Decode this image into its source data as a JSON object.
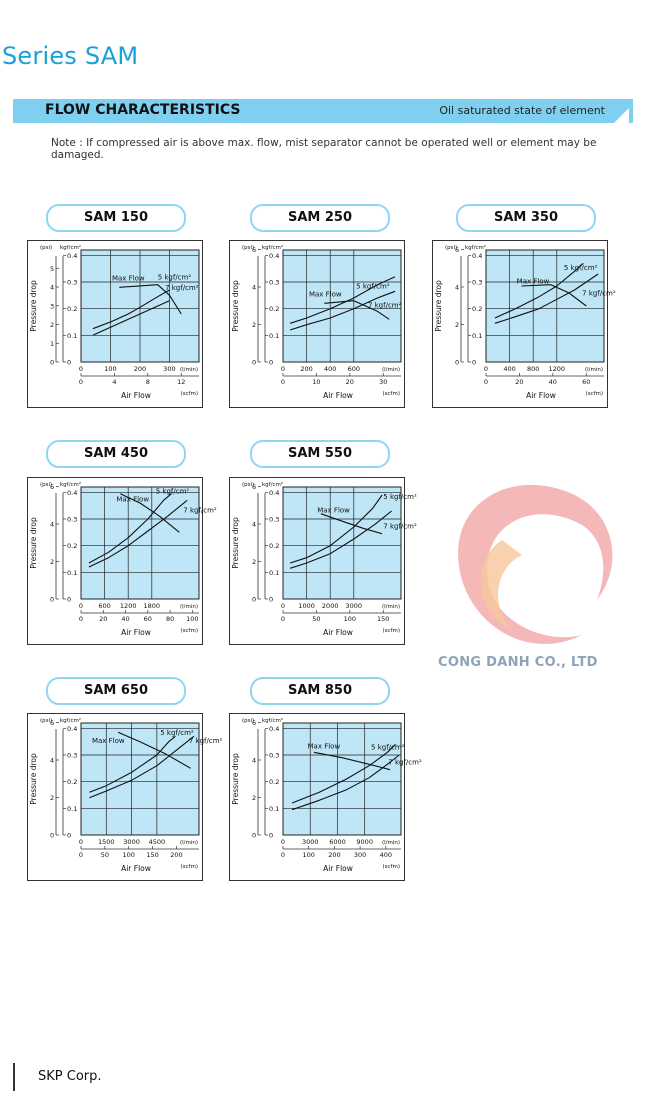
{
  "header": {
    "title": "Series SAM"
  },
  "banner": {
    "title": "FLOW CHARACTERISTICS",
    "subtitle": "Oil saturated state of element"
  },
  "note": "Note : If compressed air is above max. flow, mist separator cannot be operated well or element may be damaged.",
  "watermark": {
    "text": "CONG DANH CO., LTD"
  },
  "footer": {
    "company": "SKP Corp."
  },
  "chart_data": [
    {
      "model": "SAM 150",
      "type": "line",
      "y_left_label": "(psi)",
      "y_right_label": "kgf/cm²",
      "ylabel": "Pressure drop",
      "psi_ticks": [
        "0",
        "1",
        "2",
        "3",
        "4",
        "5"
      ],
      "kgf_ticks": [
        "0",
        "0.1",
        "0.2",
        "0.3",
        "0.4"
      ],
      "ylim": [
        0,
        0.42
      ],
      "xlim": [
        0,
        400
      ],
      "x_lmin_ticks": [
        "0",
        "100",
        "200",
        "300"
      ],
      "x_lmin_values": [
        0,
        100,
        200,
        300
      ],
      "x_lmin_unit": "(l/min)",
      "x_scfm_ticks": [
        "0",
        "4",
        "8",
        "12"
      ],
      "x_scfm_factor": 28.317,
      "x_scfm_unit": "(scfm)",
      "xlabel": "Air Flow",
      "series": [
        {
          "name": "5 kgf/cm²",
          "x": [
            40,
            100,
            160,
            200,
            260,
            300
          ],
          "y": [
            0.125,
            0.15,
            0.18,
            0.205,
            0.245,
            0.27
          ]
        },
        {
          "name": "7 kgf/cm²",
          "x": [
            40,
            100,
            160,
            200,
            260,
            300
          ],
          "y": [
            0.1,
            0.13,
            0.16,
            0.18,
            0.21,
            0.23
          ]
        },
        {
          "name": "Max Flow",
          "x": [
            130,
            260,
            300,
            340
          ],
          "y": [
            0.28,
            0.29,
            0.25,
            0.18
          ]
        }
      ],
      "labels": [
        {
          "text": "Max Flow",
          "x": 105,
          "y": 0.305
        },
        {
          "text": "5 kgf/cm²",
          "x": 260,
          "y": 0.31
        },
        {
          "text": "7 kgf/cm²",
          "x": 285,
          "y": 0.27
        }
      ]
    },
    {
      "model": "SAM 250",
      "type": "line",
      "y_left_label": "(psi)",
      "y_right_label": "kgf/cm²",
      "ylabel": "Pressure drop",
      "psi_ticks": [
        "0",
        "2",
        "4",
        "6"
      ],
      "kgf_ticks": [
        "0",
        "0.1",
        "0.2",
        "0.3",
        "0.4"
      ],
      "ylim": [
        0,
        0.42
      ],
      "xlim": [
        0,
        1000
      ],
      "x_lmin_ticks": [
        "0",
        "200",
        "400",
        "600"
      ],
      "x_lmin_values": [
        0,
        200,
        400,
        600
      ],
      "x_lmin_unit": "(l/min)",
      "x_scfm_ticks": [
        "0",
        "10",
        "20",
        "30"
      ],
      "x_scfm_factor": 28.317,
      "x_scfm_unit": "(scfm)",
      "xlabel": "Air Flow",
      "series": [
        {
          "name": "5 kgf/cm²",
          "x": [
            60,
            200,
            400,
            600,
            800,
            950
          ],
          "y": [
            0.145,
            0.165,
            0.2,
            0.24,
            0.29,
            0.32
          ]
        },
        {
          "name": "7 kgf/cm²",
          "x": [
            60,
            200,
            400,
            600,
            800,
            950
          ],
          "y": [
            0.12,
            0.14,
            0.165,
            0.2,
            0.24,
            0.265
          ]
        },
        {
          "name": "Max Flow",
          "x": [
            350,
            600,
            800,
            900
          ],
          "y": [
            0.22,
            0.23,
            0.19,
            0.16
          ]
        }
      ],
      "labels": [
        {
          "text": "Max Flow",
          "x": 220,
          "y": 0.245
        },
        {
          "text": "5 kgf/cm²",
          "x": 620,
          "y": 0.275
        },
        {
          "text": "7 kgf/cm²",
          "x": 720,
          "y": 0.205
        }
      ]
    },
    {
      "model": "SAM 350",
      "type": "line",
      "y_left_label": "(psi)",
      "y_right_label": "kgf/cm²",
      "ylabel": "Pressure drop",
      "psi_ticks": [
        "0",
        "2",
        "4",
        "6"
      ],
      "kgf_ticks": [
        "0",
        "0.1",
        "0.2",
        "0.3",
        "0.4"
      ],
      "ylim": [
        0,
        0.42
      ],
      "xlim": [
        0,
        2000
      ],
      "x_lmin_ticks": [
        "0",
        "400",
        "800",
        "1200"
      ],
      "x_lmin_values": [
        0,
        400,
        800,
        1200
      ],
      "x_lmin_unit": "(l/min)",
      "x_scfm_ticks": [
        "0",
        "20",
        "40",
        "60"
      ],
      "x_scfm_factor": 28.317,
      "x_scfm_unit": "(scfm)",
      "xlabel": "Air Flow",
      "series": [
        {
          "name": "5 kgf/cm²",
          "x": [
            150,
            500,
            900,
            1200,
            1500,
            1650
          ],
          "y": [
            0.165,
            0.2,
            0.245,
            0.285,
            0.34,
            0.37
          ]
        },
        {
          "name": "7 kgf/cm²",
          "x": [
            150,
            500,
            900,
            1200,
            1500,
            1900
          ],
          "y": [
            0.145,
            0.17,
            0.2,
            0.235,
            0.27,
            0.33
          ]
        },
        {
          "name": "Max Flow",
          "x": [
            600,
            1100,
            1400,
            1700
          ],
          "y": [
            0.285,
            0.29,
            0.26,
            0.21
          ]
        }
      ],
      "labels": [
        {
          "text": "Max Flow",
          "x": 520,
          "y": 0.295
        },
        {
          "text": "5 kgf/cm²",
          "x": 1320,
          "y": 0.345
        },
        {
          "text": "7 kgf/cm²",
          "x": 1630,
          "y": 0.25
        }
      ]
    },
    {
      "model": "SAM 450",
      "type": "line",
      "y_left_label": "(psi)",
      "y_right_label": "kgf/cm²",
      "ylabel": "Pressure drop",
      "psi_ticks": [
        "0",
        "2",
        "4",
        "6"
      ],
      "kgf_ticks": [
        "0",
        "0.1",
        "0.2",
        "0.3",
        "0.4"
      ],
      "ylim": [
        0,
        0.42
      ],
      "xlim": [
        0,
        3000
      ],
      "x_lmin_ticks": [
        "0",
        "600",
        "1200",
        "1800"
      ],
      "x_lmin_values": [
        0,
        600,
        1200,
        1800
      ],
      "x_lmin_unit": "(l/min)",
      "x_scfm_ticks": [
        "0",
        "20",
        "40",
        "60",
        "80",
        "100"
      ],
      "x_scfm_factor": 28.317,
      "x_scfm_unit": "(scfm)",
      "xlabel": "Air Flow",
      "series": [
        {
          "name": "5 kgf/cm²",
          "x": [
            200,
            700,
            1200,
            1700,
            2100,
            2300
          ],
          "y": [
            0.135,
            0.175,
            0.23,
            0.3,
            0.37,
            0.395
          ]
        },
        {
          "name": "7 kgf/cm²",
          "x": [
            200,
            700,
            1200,
            1700,
            2200,
            2700
          ],
          "y": [
            0.12,
            0.155,
            0.2,
            0.255,
            0.31,
            0.37
          ]
        },
        {
          "name": "Max Flow",
          "x": [
            1000,
            1500,
            2000,
            2500
          ],
          "y": [
            0.395,
            0.36,
            0.31,
            0.25
          ]
        }
      ],
      "labels": [
        {
          "text": "Max Flow",
          "x": 900,
          "y": 0.365
        },
        {
          "text": "5 kgf/cm²",
          "x": 1900,
          "y": 0.395
        },
        {
          "text": "7 kgf/cm²",
          "x": 2600,
          "y": 0.325
        }
      ]
    },
    {
      "model": "SAM 550",
      "type": "line",
      "y_left_label": "(psi)",
      "y_right_label": "kgf/cm²",
      "ylabel": "Pressure drop",
      "psi_ticks": [
        "0",
        "2",
        "4",
        "6"
      ],
      "kgf_ticks": [
        "0",
        "0.1",
        "0.2",
        "0.3",
        "0.4"
      ],
      "ylim": [
        0,
        0.42
      ],
      "xlim": [
        0,
        5000
      ],
      "x_lmin_ticks": [
        "0",
        "1000",
        "2000",
        "3000"
      ],
      "x_lmin_values": [
        0,
        1000,
        2000,
        3000
      ],
      "x_lmin_unit": "(l/min)",
      "x_scfm_ticks": [
        "0",
        "50",
        "100",
        "150"
      ],
      "x_scfm_factor": 28.317,
      "x_scfm_unit": "(scfm)",
      "xlabel": "Air Flow",
      "series": [
        {
          "name": "5 kgf/cm²",
          "x": [
            300,
            1000,
            2000,
            3000,
            3800,
            4200
          ],
          "y": [
            0.135,
            0.155,
            0.2,
            0.27,
            0.34,
            0.39
          ]
        },
        {
          "name": "7 kgf/cm²",
          "x": [
            300,
            1000,
            2000,
            3000,
            3900,
            4600
          ],
          "y": [
            0.115,
            0.135,
            0.17,
            0.225,
            0.28,
            0.33
          ]
        },
        {
          "name": "Max Flow",
          "x": [
            1600,
            2400,
            3400,
            4200
          ],
          "y": [
            0.32,
            0.295,
            0.265,
            0.245
          ]
        }
      ],
      "labels": [
        {
          "text": "Max Flow",
          "x": 1450,
          "y": 0.325
        },
        {
          "text": "5 kgf/cm²",
          "x": 4250,
          "y": 0.375
        },
        {
          "text": "7 kgf/cm²",
          "x": 4250,
          "y": 0.265
        }
      ]
    },
    {
      "model": "SAM 650",
      "type": "line",
      "y_left_label": "(psi)",
      "y_right_label": "kgf/cm²",
      "ylabel": "Pressure drop",
      "psi_ticks": [
        "0",
        "2",
        "4",
        "6"
      ],
      "kgf_ticks": [
        "0",
        "0.1",
        "0.2",
        "0.3",
        "0.4"
      ],
      "ylim": [
        0,
        0.42
      ],
      "xlim": [
        0,
        7000
      ],
      "x_lmin_ticks": [
        "0",
        "1500",
        "3000",
        "4500"
      ],
      "x_lmin_values": [
        0,
        1500,
        3000,
        4500
      ],
      "x_lmin_unit": "(l/min)",
      "x_scfm_ticks": [
        "0",
        "50",
        "100",
        "150",
        "200"
      ],
      "x_scfm_factor": 28.317,
      "x_scfm_unit": "(scfm)",
      "xlabel": "Air Flow",
      "series": [
        {
          "name": "5 kgf/cm²",
          "x": [
            500,
            1500,
            3000,
            4500,
            5200,
            5600
          ],
          "y": [
            0.16,
            0.185,
            0.235,
            0.3,
            0.35,
            0.37
          ]
        },
        {
          "name": "7 kgf/cm²",
          "x": [
            500,
            1500,
            3000,
            4500,
            5500,
            6700
          ],
          "y": [
            0.14,
            0.165,
            0.205,
            0.26,
            0.31,
            0.37
          ]
        },
        {
          "name": "Max Flow",
          "x": [
            2200,
            3500,
            5000,
            6500
          ],
          "y": [
            0.385,
            0.35,
            0.305,
            0.25
          ]
        }
      ],
      "labels": [
        {
          "text": "Max Flow",
          "x": 650,
          "y": 0.345
        },
        {
          "text": "5 kgf/cm²",
          "x": 4700,
          "y": 0.375
        },
        {
          "text": "7 kgf/cm²",
          "x": 6400,
          "y": 0.345
        }
      ]
    },
    {
      "model": "SAM 850",
      "type": "line",
      "y_left_label": "(psi)",
      "y_right_label": "kgf/cm²",
      "ylabel": "Pressure drop",
      "psi_ticks": [
        "0",
        "2",
        "4",
        "6"
      ],
      "kgf_ticks": [
        "0",
        "0.1",
        "0.2",
        "0.3",
        "0.4"
      ],
      "ylim": [
        0,
        0.42
      ],
      "xlim": [
        0,
        13000
      ],
      "x_lmin_ticks": [
        "0",
        "3000",
        "6000",
        "9000"
      ],
      "x_lmin_values": [
        0,
        3000,
        6000,
        9000
      ],
      "x_lmin_unit": "(l/min)",
      "x_scfm_ticks": [
        "0",
        "100",
        "200",
        "300",
        "400"
      ],
      "x_scfm_factor": 28.317,
      "x_scfm_unit": "(scfm)",
      "xlabel": "Air Flow",
      "series": [
        {
          "name": "5 kgf/cm²",
          "x": [
            1000,
            4000,
            7000,
            9500,
            11500,
            12400
          ],
          "y": [
            0.12,
            0.16,
            0.21,
            0.26,
            0.31,
            0.34
          ]
        },
        {
          "name": "7 kgf/cm²",
          "x": [
            1000,
            4000,
            7000,
            9500,
            11500,
            12800
          ],
          "y": [
            0.095,
            0.13,
            0.17,
            0.215,
            0.265,
            0.3
          ]
        },
        {
          "name": "Max Flow",
          "x": [
            3400,
            6500,
            9500,
            11800
          ],
          "y": [
            0.31,
            0.29,
            0.265,
            0.245
          ]
        }
      ],
      "labels": [
        {
          "text": "Max Flow",
          "x": 2700,
          "y": 0.325
        },
        {
          "text": "5 kgf/cm²",
          "x": 9700,
          "y": 0.32
        },
        {
          "text": "7 kgf/cm²",
          "x": 11600,
          "y": 0.265
        }
      ]
    }
  ]
}
